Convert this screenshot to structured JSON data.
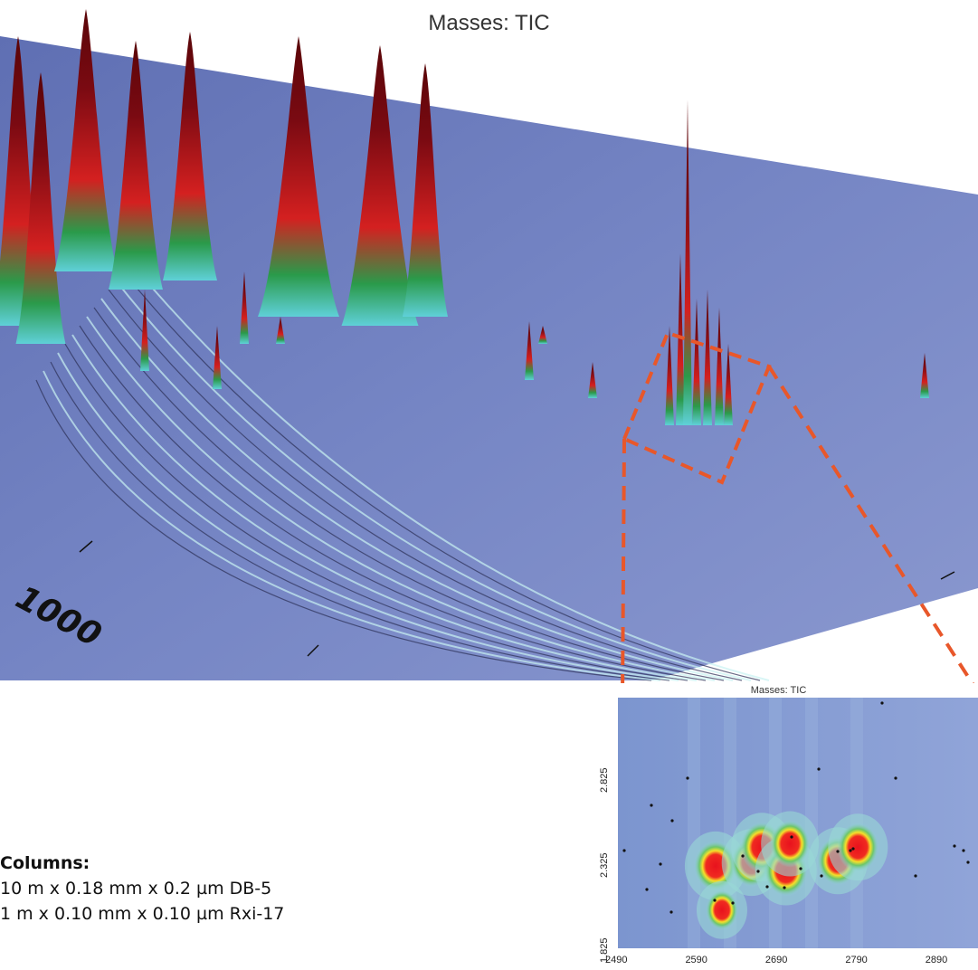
{
  "title": "Masses: TIC",
  "surface_axis_label": "1000",
  "columns": {
    "heading": "Columns:",
    "lines": [
      "10 m x 0.18 mm x 0.2 µm DB-5",
      "1 m x 0.10 mm x 0.10 µm Rxi-17"
    ]
  },
  "colors": {
    "surface_base": "#6f7fbf",
    "peak_high": "#7a0a12",
    "peak_mid": "#d42020",
    "peak_low": "#2a9a4a",
    "zoom_outline": "#e8572a"
  },
  "chart_data": [
    {
      "type": "surface",
      "title": "Masses: TIC",
      "xlabel": "",
      "ylabel": "",
      "tick_labels": [
        "1000"
      ],
      "grid": false
    },
    {
      "type": "heatmap",
      "title": "Masses: TIC",
      "xlabel": "",
      "ylabel": "",
      "x_ticks": [
        2490,
        2590,
        2690,
        2790,
        2890
      ],
      "y_ticks": [
        "2.825",
        "2.325",
        "1.825"
      ],
      "xlim": [
        2490,
        2940
      ],
      "ylim": [
        1.825,
        3.3
      ],
      "blobs": [
        {
          "x": 2612,
          "y": 2.31,
          "intensity": 1.0
        },
        {
          "x": 2657,
          "y": 2.33,
          "intensity": 0.9
        },
        {
          "x": 2670,
          "y": 2.42,
          "intensity": 1.0
        },
        {
          "x": 2700,
          "y": 2.28,
          "intensity": 1.0
        },
        {
          "x": 2705,
          "y": 2.44,
          "intensity": 0.8
        },
        {
          "x": 2765,
          "y": 2.34,
          "intensity": 0.9
        },
        {
          "x": 2790,
          "y": 2.42,
          "intensity": 0.9
        },
        {
          "x": 2620,
          "y": 2.05,
          "intensity": 0.4
        }
      ]
    }
  ]
}
